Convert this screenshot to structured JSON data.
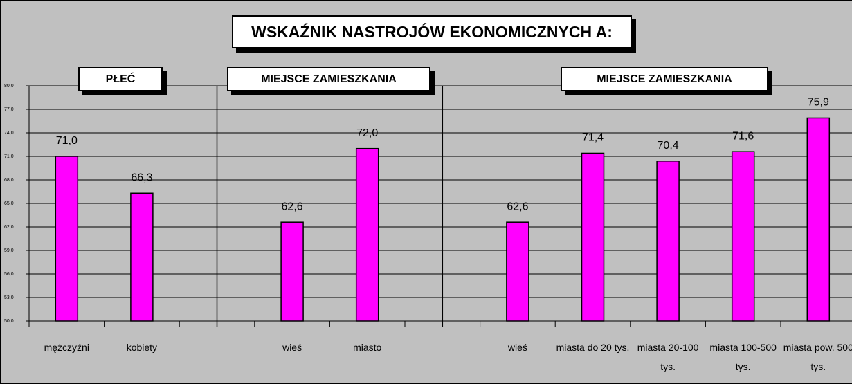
{
  "chart_data": {
    "type": "bar",
    "title": "WSKAŹNIK NASTROJÓW EKONOMICZNYCH A:",
    "section_labels": [
      "PŁEĆ",
      "MIEJSCE ZAMIESZKANIA",
      "MIEJSCE ZAMIESZKANIA"
    ],
    "categories": [
      "mężczyźni",
      "kobiety",
      null,
      "wieś",
      "miasto",
      null,
      "wieś",
      "miasta do 20 tys.",
      "miasta 20-100 tys.",
      "miasta 100-500 tys.",
      "miasta pow. 500 tys."
    ],
    "values": [
      71.0,
      66.3,
      null,
      62.6,
      72.0,
      null,
      62.6,
      71.4,
      70.4,
      71.6,
      75.9
    ],
    "value_labels": [
      "71,0",
      "66,3",
      null,
      "62,6",
      "72,0",
      null,
      "62,6",
      "71,4",
      "70,4",
      "71,6",
      "75,9"
    ],
    "color": "#ff00ff",
    "ylim": [
      50,
      80
    ],
    "yticks": [
      {
        "value": 50,
        "label": "50,0"
      },
      {
        "value": 53,
        "label": "53,0"
      },
      {
        "value": 56,
        "label": "56,0"
      },
      {
        "value": 59,
        "label": "59,0"
      },
      {
        "value": 62,
        "label": "62,0"
      },
      {
        "value": 65,
        "label": "65,0"
      },
      {
        "value": 68,
        "label": "68,0"
      },
      {
        "value": 71,
        "label": "71,0"
      },
      {
        "value": 74,
        "label": "74,0"
      },
      {
        "value": 77,
        "label": "77,0"
      },
      {
        "value": 80,
        "label": "80,0"
      }
    ],
    "grid": true
  }
}
